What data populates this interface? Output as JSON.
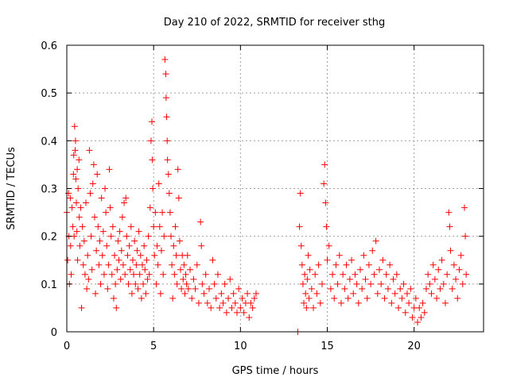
{
  "chart_data": {
    "type": "scatter",
    "title": "Day 210 of 2022, SRMTID for receiver sthg",
    "xlabel": "GPS time / hours",
    "ylabel": "SRMTID / TECUs",
    "xlim": [
      0,
      24
    ],
    "ylim": [
      0,
      0.6
    ],
    "xticks": [
      0,
      5,
      10,
      15,
      20
    ],
    "xtick_labels": [
      "0",
      "5",
      "10",
      "15",
      "20"
    ],
    "yticks": [
      0,
      0.1,
      0.2,
      0.3,
      0.4,
      0.5,
      0.6
    ],
    "ytick_labels": [
      "0",
      "0.1",
      "0.2",
      "0.3",
      "0.4",
      "0.5",
      "0.6"
    ],
    "grid": true,
    "marker": "plus",
    "color": "#ff0000",
    "series": [
      {
        "name": "sthg",
        "points": [
          [
            0.0,
            0.25
          ],
          [
            0.05,
            0.15
          ],
          [
            0.1,
            0.29
          ],
          [
            0.12,
            0.2
          ],
          [
            0.15,
            0.1
          ],
          [
            0.2,
            0.28
          ],
          [
            0.22,
            0.18
          ],
          [
            0.25,
            0.12
          ],
          [
            0.3,
            0.26
          ],
          [
            0.35,
            0.22
          ],
          [
            0.38,
            0.33
          ],
          [
            0.4,
            0.37
          ],
          [
            0.42,
            0.2
          ],
          [
            0.45,
            0.43
          ],
          [
            0.48,
            0.38
          ],
          [
            0.5,
            0.4
          ],
          [
            0.52,
            0.32
          ],
          [
            0.55,
            0.27
          ],
          [
            0.58,
            0.21
          ],
          [
            0.6,
            0.34
          ],
          [
            0.62,
            0.15
          ],
          [
            0.65,
            0.3
          ],
          [
            0.7,
            0.36
          ],
          [
            0.72,
            0.24
          ],
          [
            0.75,
            0.18
          ],
          [
            0.8,
            0.26
          ],
          [
            0.85,
            0.05
          ],
          [
            0.9,
            0.22
          ],
          [
            0.95,
            0.14
          ],
          [
            1.0,
            0.19
          ],
          [
            1.05,
            0.12
          ],
          [
            1.1,
            0.27
          ],
          [
            1.15,
            0.09
          ],
          [
            1.2,
            0.16
          ],
          [
            1.25,
            0.11
          ],
          [
            1.3,
            0.38
          ],
          [
            1.35,
            0.29
          ],
          [
            1.4,
            0.2
          ],
          [
            1.45,
            0.13
          ],
          [
            1.5,
            0.31
          ],
          [
            1.55,
            0.35
          ],
          [
            1.6,
            0.24
          ],
          [
            1.65,
            0.08
          ],
          [
            1.7,
            0.17
          ],
          [
            1.75,
            0.33
          ],
          [
            1.8,
            0.22
          ],
          [
            1.85,
            0.14
          ],
          [
            1.9,
            0.19
          ],
          [
            1.95,
            0.1
          ],
          [
            2.0,
            0.28
          ],
          [
            2.05,
            0.16
          ],
          [
            2.1,
            0.21
          ],
          [
            2.15,
            0.12
          ],
          [
            2.2,
            0.3
          ],
          [
            2.25,
            0.25
          ],
          [
            2.3,
            0.18
          ],
          [
            2.35,
            0.09
          ],
          [
            2.4,
            0.14
          ],
          [
            2.45,
            0.34
          ],
          [
            2.5,
            0.26
          ],
          [
            2.55,
            0.2
          ],
          [
            2.6,
            0.12
          ],
          [
            2.65,
            0.22
          ],
          [
            2.7,
            0.07
          ],
          [
            2.75,
            0.16
          ],
          [
            2.8,
            0.1
          ],
          [
            2.85,
            0.05
          ],
          [
            2.9,
            0.13
          ],
          [
            2.95,
            0.19
          ],
          [
            3.0,
            0.15
          ],
          [
            3.05,
            0.21
          ],
          [
            3.1,
            0.11
          ],
          [
            3.15,
            0.17
          ],
          [
            3.2,
            0.24
          ],
          [
            3.25,
            0.14
          ],
          [
            3.3,
            0.27
          ],
          [
            3.35,
            0.12
          ],
          [
            3.4,
            0.28
          ],
          [
            3.45,
            0.2
          ],
          [
            3.5,
            0.16
          ],
          [
            3.55,
            0.1
          ],
          [
            3.6,
            0.18
          ],
          [
            3.65,
            0.13
          ],
          [
            3.7,
            0.22
          ],
          [
            3.75,
            0.08
          ],
          [
            3.8,
            0.15
          ],
          [
            3.85,
            0.12
          ],
          [
            3.9,
            0.19
          ],
          [
            3.95,
            0.1
          ],
          [
            4.0,
            0.14
          ],
          [
            4.05,
            0.17
          ],
          [
            4.1,
            0.09
          ],
          [
            4.15,
            0.21
          ],
          [
            4.2,
            0.12
          ],
          [
            4.25,
            0.16
          ],
          [
            4.3,
            0.07
          ],
          [
            4.35,
            0.14
          ],
          [
            4.4,
            0.1
          ],
          [
            4.45,
            0.18
          ],
          [
            4.5,
            0.13
          ],
          [
            4.55,
            0.08
          ],
          [
            4.6,
            0.15
          ],
          [
            4.65,
            0.11
          ],
          [
            4.7,
            0.2
          ],
          [
            4.75,
            0.12
          ],
          [
            4.8,
            0.26
          ],
          [
            4.85,
            0.4
          ],
          [
            4.9,
            0.44
          ],
          [
            4.92,
            0.36
          ],
          [
            4.95,
            0.3
          ],
          [
            5.0,
            0.22
          ],
          [
            5.05,
            0.16
          ],
          [
            5.1,
            0.25
          ],
          [
            5.15,
            0.1
          ],
          [
            5.2,
            0.18
          ],
          [
            5.25,
            0.14
          ],
          [
            5.3,
            0.31
          ],
          [
            5.35,
            0.22
          ],
          [
            5.4,
            0.08
          ],
          [
            5.45,
            0.17
          ],
          [
            5.5,
            0.25
          ],
          [
            5.55,
            0.12
          ],
          [
            5.6,
            0.2
          ],
          [
            5.65,
            0.57
          ],
          [
            5.7,
            0.54
          ],
          [
            5.72,
            0.49
          ],
          [
            5.75,
            0.45
          ],
          [
            5.78,
            0.4
          ],
          [
            5.8,
            0.36
          ],
          [
            5.85,
            0.33
          ],
          [
            5.9,
            0.29
          ],
          [
            5.95,
            0.25
          ],
          [
            6.0,
            0.2
          ],
          [
            6.05,
            0.14
          ],
          [
            6.1,
            0.07
          ],
          [
            6.15,
            0.18
          ],
          [
            6.2,
            0.12
          ],
          [
            6.25,
            0.22
          ],
          [
            6.3,
            0.16
          ],
          [
            6.35,
            0.1
          ],
          [
            6.4,
            0.34
          ],
          [
            6.45,
            0.28
          ],
          [
            6.5,
            0.19
          ],
          [
            6.55,
            0.13
          ],
          [
            6.6,
            0.09
          ],
          [
            6.65,
            0.16
          ],
          [
            6.7,
            0.11
          ],
          [
            6.75,
            0.14
          ],
          [
            6.8,
            0.08
          ],
          [
            6.85,
            0.12
          ],
          [
            6.9,
            0.1
          ],
          [
            6.95,
            0.16
          ],
          [
            7.0,
            0.09
          ],
          [
            7.1,
            0.13
          ],
          [
            7.2,
            0.07
          ],
          [
            7.3,
            0.11
          ],
          [
            7.4,
            0.09
          ],
          [
            7.5,
            0.14
          ],
          [
            7.6,
            0.06
          ],
          [
            7.7,
            0.23
          ],
          [
            7.75,
            0.18
          ],
          [
            7.8,
            0.1
          ],
          [
            7.9,
            0.08
          ],
          [
            8.0,
            0.12
          ],
          [
            8.1,
            0.06
          ],
          [
            8.2,
            0.09
          ],
          [
            8.3,
            0.05
          ],
          [
            8.4,
            0.15
          ],
          [
            8.5,
            0.1
          ],
          [
            8.6,
            0.07
          ],
          [
            8.7,
            0.12
          ],
          [
            8.8,
            0.05
          ],
          [
            8.9,
            0.08
          ],
          [
            9.0,
            0.06
          ],
          [
            9.1,
            0.1
          ],
          [
            9.2,
            0.04
          ],
          [
            9.3,
            0.07
          ],
          [
            9.4,
            0.11
          ],
          [
            9.5,
            0.05
          ],
          [
            9.6,
            0.08
          ],
          [
            9.7,
            0.06
          ],
          [
            9.8,
            0.04
          ],
          [
            9.9,
            0.09
          ],
          [
            10.0,
            0.05
          ],
          [
            10.1,
            0.07
          ],
          [
            10.2,
            0.04
          ],
          [
            10.3,
            0.06
          ],
          [
            10.4,
            0.08
          ],
          [
            10.5,
            0.03
          ],
          [
            10.6,
            0.06
          ],
          [
            10.7,
            0.05
          ],
          [
            10.8,
            0.07
          ],
          [
            10.9,
            0.08
          ],
          [
            13.3,
            0.0
          ],
          [
            13.4,
            0.22
          ],
          [
            13.45,
            0.29
          ],
          [
            13.5,
            0.18
          ],
          [
            13.55,
            0.14
          ],
          [
            13.6,
            0.1
          ],
          [
            13.65,
            0.06
          ],
          [
            13.7,
            0.12
          ],
          [
            13.75,
            0.08
          ],
          [
            13.8,
            0.05
          ],
          [
            13.85,
            0.11
          ],
          [
            13.9,
            0.16
          ],
          [
            13.95,
            0.07
          ],
          [
            14.0,
            0.13
          ],
          [
            14.1,
            0.09
          ],
          [
            14.2,
            0.05
          ],
          [
            14.3,
            0.12
          ],
          [
            14.4,
            0.08
          ],
          [
            14.5,
            0.14
          ],
          [
            14.6,
            0.06
          ],
          [
            14.7,
            0.1
          ],
          [
            14.8,
            0.31
          ],
          [
            14.85,
            0.35
          ],
          [
            14.9,
            0.27
          ],
          [
            14.95,
            0.22
          ],
          [
            15.0,
            0.15
          ],
          [
            15.1,
            0.18
          ],
          [
            15.2,
            0.09
          ],
          [
            15.3,
            0.12
          ],
          [
            15.4,
            0.07
          ],
          [
            15.5,
            0.14
          ],
          [
            15.6,
            0.1
          ],
          [
            15.7,
            0.16
          ],
          [
            15.8,
            0.06
          ],
          [
            15.9,
            0.12
          ],
          [
            16.0,
            0.09
          ],
          [
            16.1,
            0.14
          ],
          [
            16.2,
            0.07
          ],
          [
            16.3,
            0.11
          ],
          [
            16.4,
            0.15
          ],
          [
            16.5,
            0.08
          ],
          [
            16.6,
            0.12
          ],
          [
            16.7,
            0.1
          ],
          [
            16.8,
            0.06
          ],
          [
            16.9,
            0.13
          ],
          [
            17.0,
            0.09
          ],
          [
            17.1,
            0.16
          ],
          [
            17.2,
            0.11
          ],
          [
            17.3,
            0.07
          ],
          [
            17.4,
            0.14
          ],
          [
            17.5,
            0.1
          ],
          [
            17.6,
            0.17
          ],
          [
            17.7,
            0.12
          ],
          [
            17.8,
            0.19
          ],
          [
            17.9,
            0.08
          ],
          [
            18.0,
            0.13
          ],
          [
            18.1,
            0.1
          ],
          [
            18.2,
            0.15
          ],
          [
            18.3,
            0.07
          ],
          [
            18.4,
            0.12
          ],
          [
            18.5,
            0.09
          ],
          [
            18.6,
            0.14
          ],
          [
            18.7,
            0.06
          ],
          [
            18.8,
            0.11
          ],
          [
            18.9,
            0.08
          ],
          [
            19.0,
            0.12
          ],
          [
            19.1,
            0.05
          ],
          [
            19.2,
            0.09
          ],
          [
            19.3,
            0.07
          ],
          [
            19.4,
            0.1
          ],
          [
            19.5,
            0.04
          ],
          [
            19.6,
            0.08
          ],
          [
            19.7,
            0.06
          ],
          [
            19.8,
            0.09
          ],
          [
            19.9,
            0.03
          ],
          [
            20.0,
            0.05
          ],
          [
            20.1,
            0.07
          ],
          [
            20.2,
            0.02
          ],
          [
            20.3,
            0.05
          ],
          [
            20.4,
            0.03
          ],
          [
            20.5,
            0.06
          ],
          [
            20.6,
            0.04
          ],
          [
            20.7,
            0.09
          ],
          [
            20.8,
            0.12
          ],
          [
            20.9,
            0.1
          ],
          [
            21.0,
            0.08
          ],
          [
            21.1,
            0.14
          ],
          [
            21.2,
            0.11
          ],
          [
            21.3,
            0.07
          ],
          [
            21.4,
            0.13
          ],
          [
            21.5,
            0.09
          ],
          [
            21.6,
            0.15
          ],
          [
            21.7,
            0.1
          ],
          [
            21.8,
            0.06
          ],
          [
            21.9,
            0.12
          ],
          [
            22.0,
            0.25
          ],
          [
            22.05,
            0.22
          ],
          [
            22.1,
            0.17
          ],
          [
            22.2,
            0.09
          ],
          [
            22.3,
            0.14
          ],
          [
            22.4,
            0.11
          ],
          [
            22.5,
            0.07
          ],
          [
            22.6,
            0.13
          ],
          [
            22.7,
            0.16
          ],
          [
            22.8,
            0.1
          ],
          [
            22.9,
            0.26
          ],
          [
            22.95,
            0.2
          ],
          [
            23.0,
            0.12
          ]
        ]
      }
    ]
  }
}
